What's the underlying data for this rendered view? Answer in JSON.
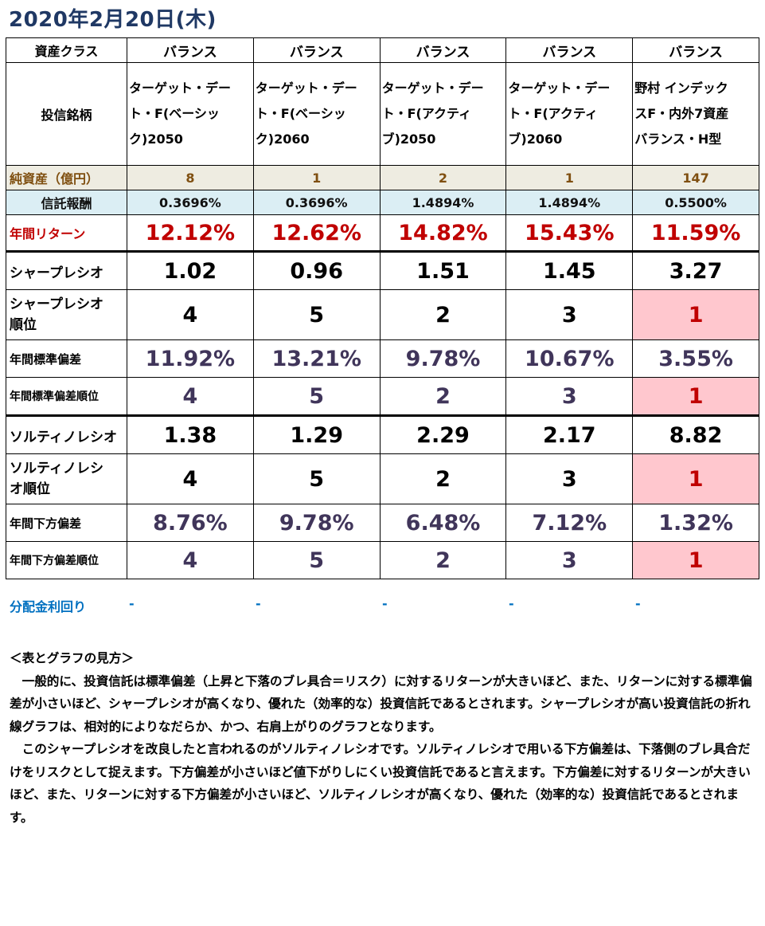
{
  "title": "2020年2月20日(木)",
  "labels": {
    "asset_class": "資産クラス",
    "fund_name": "投信銘柄",
    "net_assets": "純資産（億円）",
    "trust_fee": "信託報酬",
    "annual_return": "年間リターン",
    "sharpe": "シャープレシオ",
    "sharpe_rank": "シャープレシオ\n順位",
    "std": "年間標準偏差",
    "std_rank": "年間標準偏差順位",
    "sortino": "ソルティノレシオ",
    "sortino_rank": "ソルティノレシ\nオ順位",
    "downside": "年間下方偏差",
    "downside_rank": "年間下方偏差順位",
    "dividend_yield": "分配金利回り"
  },
  "funds": [
    {
      "asset_class": "バランス",
      "name": "ターゲット・デー\nト・F(ベーシッ\nク)2050",
      "net_assets": "8",
      "trust_fee": "0.3696%",
      "annual_return": "12.12%",
      "sharpe": "1.02",
      "sharpe_rank": "4",
      "std": "11.92%",
      "std_rank": "4",
      "sortino": "1.38",
      "sortino_rank": "4",
      "downside": "8.76%",
      "downside_rank": "4",
      "dividend_yield": "-"
    },
    {
      "asset_class": "バランス",
      "name": "ターゲット・デー\nト・F(ベーシッ\nク)2060",
      "net_assets": "1",
      "trust_fee": "0.3696%",
      "annual_return": "12.62%",
      "sharpe": "0.96",
      "sharpe_rank": "5",
      "std": "13.21%",
      "std_rank": "5",
      "sortino": "1.29",
      "sortino_rank": "5",
      "downside": "9.78%",
      "downside_rank": "5",
      "dividend_yield": "-"
    },
    {
      "asset_class": "バランス",
      "name": "ターゲット・デー\nト・F(アクティ\nブ)2050",
      "net_assets": "2",
      "trust_fee": "1.4894%",
      "annual_return": "14.82%",
      "sharpe": "1.51",
      "sharpe_rank": "2",
      "std": "9.78%",
      "std_rank": "2",
      "sortino": "2.29",
      "sortino_rank": "2",
      "downside": "6.48%",
      "downside_rank": "2",
      "dividend_yield": "-"
    },
    {
      "asset_class": "バランス",
      "name": "ターゲット・デー\nト・F(アクティ\nブ)2060",
      "net_assets": "1",
      "trust_fee": "1.4894%",
      "annual_return": "15.43%",
      "sharpe": "1.45",
      "sharpe_rank": "3",
      "std": "10.67%",
      "std_rank": "3",
      "sortino": "2.17",
      "sortino_rank": "3",
      "downside": "7.12%",
      "downside_rank": "3",
      "dividend_yield": "-"
    },
    {
      "asset_class": "バランス",
      "name": "野村 インデック\nスF・内外7資産\nバランス・H型",
      "net_assets": "147",
      "trust_fee": "0.5500%",
      "annual_return": "11.59%",
      "sharpe": "3.27",
      "sharpe_rank": "1",
      "std": "3.55%",
      "std_rank": "1",
      "sortino": "8.82",
      "sortino_rank": "1",
      "downside": "1.32%",
      "downside_rank": "1",
      "dividend_yield": "-"
    }
  ],
  "notes": {
    "heading": "＜表とグラフの見方＞",
    "p1": "　一般的に、投資信託は標準偏差（上昇と下落のブレ具合＝リスク）に対するリターンが大きいほど、また、リターンに対する標準偏差が小さいほど、シャープレシオが高くなり、優れた（効率的な）投資信託であるとされます。シャープレシオが高い投資信託の折れ線グラフは、相対的によりなだらか、かつ、右肩上がりのグラフとなります。",
    "p2": "　このシャープレシオを改良したと言われるのがソルティノレシオです。ソルティノレシオで用いる下方偏差は、下落側のブレ具合だけをリスクとして捉えます。下方偏差が小さいほど値下がりしにくい投資信託であると言えます。下方偏差に対するリターンが大きいほど、また、リターンに対する下方偏差が小さいほど、ソルティノレシオが高くなり、優れた（効率的な）投資信託であるとされます。"
  },
  "colors": {
    "title": "#1f3864",
    "return_red": "#c00000",
    "rank1_bg": "#ffc7ce",
    "net_assets_bg": "#eeece1",
    "fee_bg": "#dbeef4",
    "dividend_blue": "#0070c0"
  }
}
